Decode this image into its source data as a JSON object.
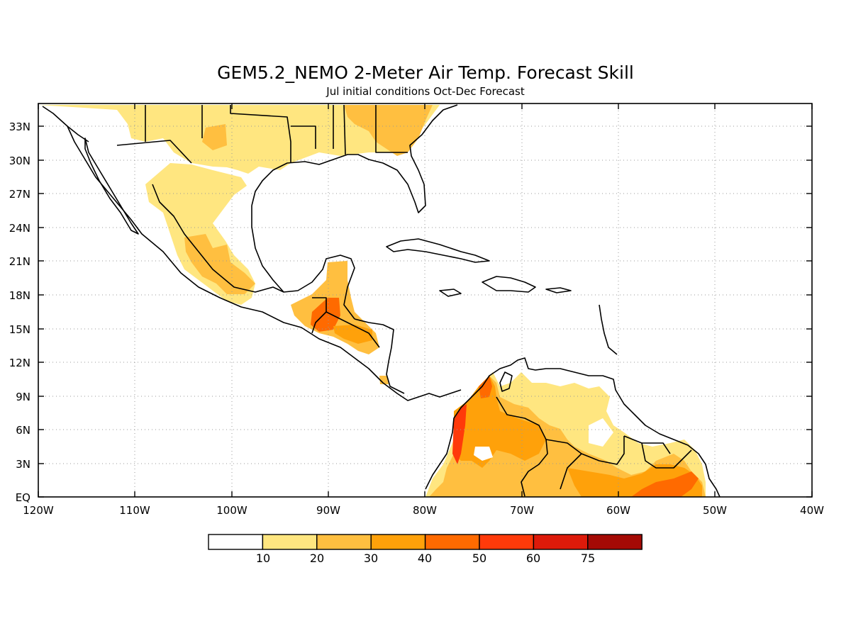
{
  "title": "GEM5.2_NEMO 2-Meter Air Temp. Forecast Skill",
  "subtitle": "Jul initial conditions  Oct-Dec Forecast",
  "map": {
    "lon_range": [
      -120,
      -40
    ],
    "lat_range": [
      0,
      35
    ],
    "lon_ticks": [
      "120W",
      "110W",
      "100W",
      "90W",
      "80W",
      "70W",
      "60W",
      "50W",
      "40W"
    ],
    "lat_ticks": [
      "EQ",
      "3N",
      "6N",
      "9N",
      "12N",
      "15N",
      "18N",
      "21N",
      "24N",
      "27N",
      "30N",
      "33N"
    ],
    "gridlines": "dotted",
    "coastline_color": "#000000"
  },
  "colorbar": {
    "colors": [
      "#ffffff",
      "#ffe680",
      "#ffbf40",
      "#ffa10a",
      "#ff6a00",
      "#ff3a0a",
      "#dd1a0a",
      "#a50a05"
    ],
    "labels": [
      "10",
      "20",
      "30",
      "40",
      "50",
      "60",
      "75"
    ]
  }
}
